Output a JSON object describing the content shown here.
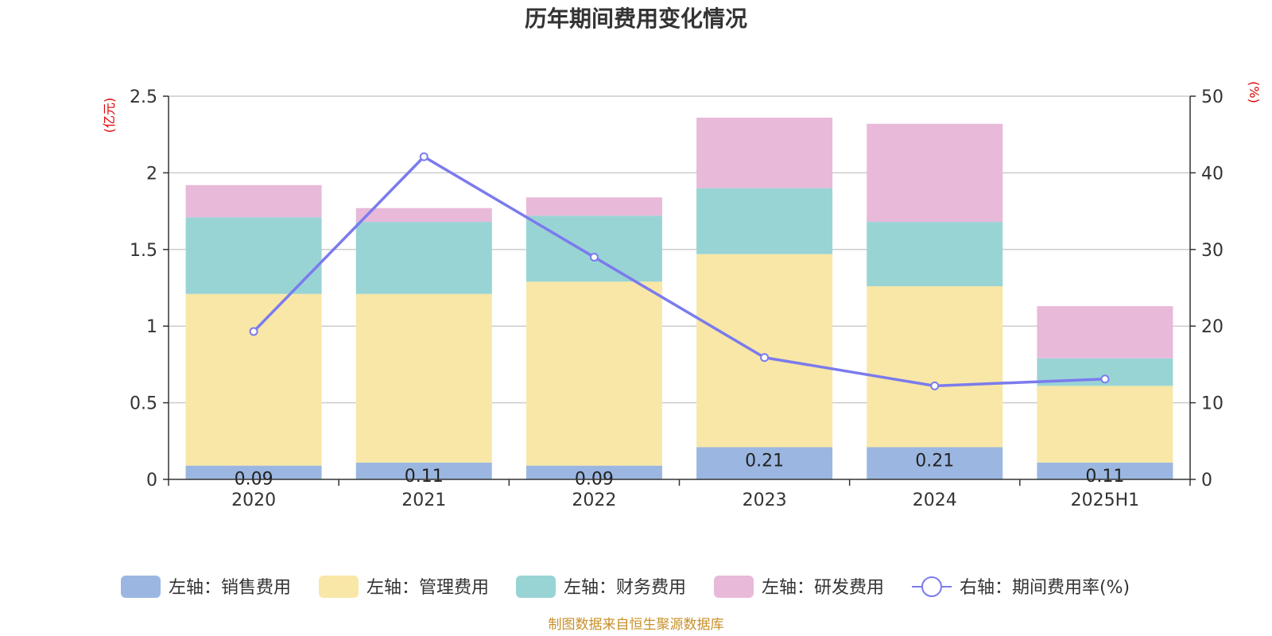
{
  "chart_data": {
    "type": "bar",
    "title": "历年期间费用变化情况",
    "categories": [
      "2020",
      "2021",
      "2022",
      "2023",
      "2024",
      "2025H1"
    ],
    "left_axis": {
      "unit": "(亿元)",
      "ylim": [
        0,
        2.5
      ],
      "ticks": [
        "0",
        "0.5",
        "1",
        "1.5",
        "2",
        "2.5"
      ]
    },
    "right_axis": {
      "unit": "(%)",
      "ylim": [
        0,
        50
      ],
      "ticks": [
        "0",
        "10",
        "20",
        "30",
        "40",
        "50"
      ]
    },
    "series": [
      {
        "name": "左轴：销售费用",
        "type": "bar",
        "axis": "left",
        "color": "#9bb7e1",
        "values": [
          0.09,
          0.11,
          0.09,
          0.21,
          0.21,
          0.11
        ],
        "labels": [
          "0.09",
          "0.11",
          "0.09",
          "0.21",
          "0.21",
          "0.11"
        ]
      },
      {
        "name": "左轴：管理费用",
        "type": "bar",
        "axis": "left",
        "color": "#f8e7a7",
        "values": [
          1.12,
          1.1,
          1.2,
          1.26,
          1.05,
          0.5
        ]
      },
      {
        "name": "左轴：财务费用",
        "type": "bar",
        "axis": "left",
        "color": "#99d4d5",
        "values": [
          0.5,
          0.47,
          0.43,
          0.43,
          0.42,
          0.18
        ]
      },
      {
        "name": "左轴：研发费用",
        "type": "bar",
        "axis": "left",
        "color": "#e8b9d9",
        "values": [
          0.21,
          0.09,
          0.12,
          0.46,
          0.64,
          0.34
        ]
      },
      {
        "name": "右轴：期间费用率(%)",
        "type": "line",
        "axis": "right",
        "color": "#7b7bed",
        "values": [
          19.3,
          42.1,
          29,
          15.9,
          12.2,
          13.1
        ]
      }
    ],
    "legend_position": "bottom",
    "grid": true
  },
  "source_note": "制图数据来自恒生聚源数据库"
}
